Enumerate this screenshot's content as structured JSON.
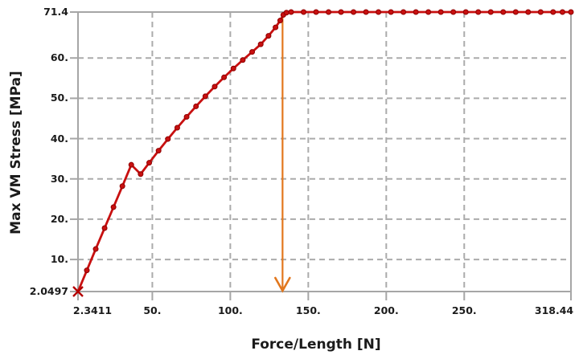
{
  "chart_data": {
    "type": "line",
    "title": "",
    "xlabel": "Force/Length [N]",
    "ylabel": "Max VM Stress [MPa]",
    "xlim": [
      2.3411,
      318.44
    ],
    "ylim": [
      2.0497,
      71.4
    ],
    "grid": true,
    "grid_style": "dashed",
    "legend_position": "none",
    "x_ticks": {
      "values": [
        2.3411,
        50,
        100,
        150,
        200,
        250,
        318.44
      ],
      "labels": [
        "2.3411",
        "50.",
        "100.",
        "150.",
        "200.",
        "250.",
        "318.44"
      ]
    },
    "y_ticks": {
      "values": [
        2.0497,
        10,
        20,
        30,
        40,
        50,
        60,
        71.4
      ],
      "labels": [
        "2.0497",
        "10.",
        "20.",
        "30.",
        "40.",
        "50.",
        "60.",
        "71.4"
      ]
    },
    "series": [
      {
        "name": "Max VM Stress",
        "color": "#c81010",
        "marker": "circle",
        "start_marker": "x",
        "points": [
          [
            2.3411,
            2.0497
          ],
          [
            8,
            7.3
          ],
          [
            13.7,
            12.6
          ],
          [
            19.4,
            17.8
          ],
          [
            25.1,
            23.0
          ],
          [
            30.8,
            28.2
          ],
          [
            36.5,
            33.5
          ],
          [
            42.5,
            31.2
          ],
          [
            48,
            34.0
          ],
          [
            54,
            37.0
          ],
          [
            60,
            39.9
          ],
          [
            66,
            42.7
          ],
          [
            72,
            45.4
          ],
          [
            78,
            48.0
          ],
          [
            84,
            50.5
          ],
          [
            90,
            52.9
          ],
          [
            96,
            55.2
          ],
          [
            102,
            57.4
          ],
          [
            108,
            59.5
          ],
          [
            114,
            61.5
          ],
          [
            119.5,
            63.4
          ],
          [
            124.5,
            65.5
          ],
          [
            129,
            67.6
          ],
          [
            132,
            69.3
          ],
          [
            134,
            70.7
          ],
          [
            136,
            71.25
          ],
          [
            139,
            71.4
          ],
          [
            147,
            71.4
          ],
          [
            155,
            71.4
          ],
          [
            163,
            71.4
          ],
          [
            171,
            71.4
          ],
          [
            179,
            71.4
          ],
          [
            187,
            71.4
          ],
          [
            195,
            71.4
          ],
          [
            203,
            71.4
          ],
          [
            211,
            71.4
          ],
          [
            219,
            71.4
          ],
          [
            227,
            71.4
          ],
          [
            235,
            71.4
          ],
          [
            243,
            71.4
          ],
          [
            251,
            71.4
          ],
          [
            259,
            71.4
          ],
          [
            267,
            71.4
          ],
          [
            275,
            71.4
          ],
          [
            283,
            71.4
          ],
          [
            291,
            71.4
          ],
          [
            299,
            71.4
          ],
          [
            307,
            71.4
          ],
          [
            313,
            71.4
          ],
          [
            318.44,
            71.4
          ]
        ]
      }
    ],
    "annotations": [
      {
        "type": "vertical-arrow-down",
        "x": 133.5,
        "y_from": 70.8,
        "y_to": 2.0497,
        "color": "#e2771d"
      }
    ],
    "colors": {
      "background": "#ffffff",
      "grid": "#ababab",
      "frame": "#a6a6a6",
      "text": "#1b1b1b",
      "curve": "#c81010",
      "marker_edge": "#8e0000",
      "arrow": "#e2771d"
    }
  }
}
